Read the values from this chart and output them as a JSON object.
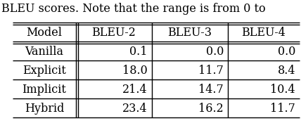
{
  "title_text": "BLEU scores. Note that the range is from 0 to",
  "col_headers": [
    "Model",
    "BLEU-2",
    "BLEU-3",
    "BLEU-4"
  ],
  "rows": [
    [
      "Vanilla",
      "0.1",
      "0.0",
      "0.0"
    ],
    [
      "Explicit",
      "18.0",
      "11.7",
      "8.4"
    ],
    [
      "Implicit",
      "21.4",
      "14.7",
      "10.4"
    ],
    [
      "Hybrid",
      "23.4",
      "16.2",
      "11.7"
    ]
  ],
  "font_size": 11.5,
  "title_font_size": 11.5,
  "bg_color": "white",
  "text_color": "black",
  "figsize": [
    4.28,
    1.82
  ],
  "dpi": 100
}
